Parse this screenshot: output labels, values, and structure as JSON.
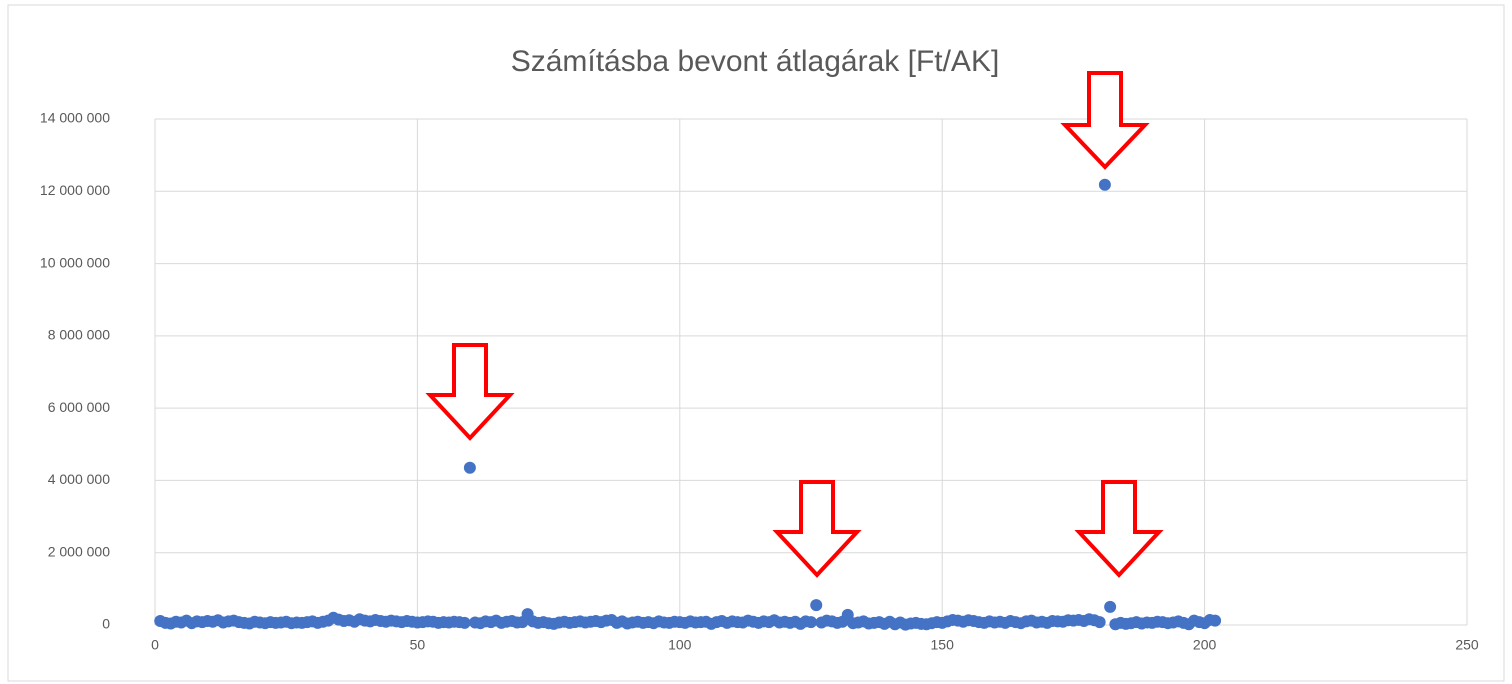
{
  "chart_data": {
    "type": "scatter",
    "title": "Számításba bevont átlagárak [Ft/AK]",
    "color": "#4472c4",
    "grid": true,
    "xlim": [
      0,
      250
    ],
    "xticks": [
      0,
      50,
      100,
      150,
      200,
      250
    ],
    "ylim": [
      0,
      14000000
    ],
    "yticks": [
      0,
      {
        "value": 2000000,
        "label": "2 000 000"
      },
      {
        "value": 4000000,
        "label": "4 000 000"
      },
      {
        "value": 6000000,
        "label": "6 000 000"
      },
      {
        "value": 8000000,
        "label": "8 000 000"
      },
      {
        "value": 10000000,
        "label": "10 000 000"
      },
      {
        "value": 12000000,
        "label": "12 000 000"
      },
      {
        "value": 14000000,
        "label": "14 000 000"
      }
    ],
    "x": [
      1,
      2,
      3,
      4,
      5,
      6,
      7,
      8,
      9,
      10,
      11,
      12,
      13,
      14,
      15,
      16,
      17,
      18,
      19,
      20,
      21,
      22,
      23,
      24,
      25,
      26,
      27,
      28,
      29,
      30,
      31,
      32,
      33,
      34,
      35,
      36,
      37,
      38,
      39,
      40,
      41,
      42,
      43,
      44,
      45,
      46,
      47,
      48,
      49,
      50,
      51,
      52,
      53,
      54,
      55,
      56,
      57,
      58,
      59,
      60,
      61,
      62,
      63,
      64,
      65,
      66,
      67,
      68,
      69,
      70,
      71,
      72,
      73,
      74,
      75,
      76,
      77,
      78,
      79,
      80,
      81,
      82,
      83,
      84,
      85,
      86,
      87,
      88,
      89,
      90,
      91,
      92,
      93,
      94,
      95,
      96,
      97,
      98,
      99,
      100,
      101,
      102,
      103,
      104,
      105,
      106,
      107,
      108,
      109,
      110,
      111,
      112,
      113,
      114,
      115,
      116,
      117,
      118,
      119,
      120,
      121,
      122,
      123,
      124,
      125,
      126,
      127,
      128,
      129,
      130,
      131,
      132,
      133,
      134,
      135,
      136,
      137,
      138,
      139,
      140,
      141,
      142,
      143,
      144,
      145,
      146,
      147,
      148,
      149,
      150,
      151,
      152,
      153,
      154,
      155,
      156,
      157,
      158,
      159,
      160,
      161,
      162,
      163,
      164,
      165,
      166,
      167,
      168,
      169,
      170,
      171,
      172,
      173,
      174,
      175,
      176,
      177,
      178,
      179,
      180,
      181,
      182,
      183,
      184,
      185,
      186,
      187,
      188,
      189,
      190,
      191,
      192,
      193,
      194,
      195,
      196,
      197,
      198,
      199,
      200,
      201,
      202
    ],
    "values": [
      110000,
      60000,
      40000,
      90000,
      70000,
      120000,
      50000,
      100000,
      80000,
      110000,
      90000,
      130000,
      70000,
      100000,
      120000,
      80000,
      60000,
      40000,
      90000,
      70000,
      50000,
      80000,
      60000,
      70000,
      90000,
      50000,
      70000,
      60000,
      80000,
      100000,
      60000,
      90000,
      120000,
      200000,
      150000,
      110000,
      130000,
      90000,
      160000,
      120000,
      100000,
      140000,
      110000,
      90000,
      120000,
      100000,
      80000,
      110000,
      90000,
      70000,
      80000,
      100000,
      90000,
      60000,
      80000,
      70000,
      90000,
      80000,
      60000,
      4350000,
      70000,
      50000,
      100000,
      80000,
      120000,
      60000,
      90000,
      110000,
      70000,
      80000,
      300000,
      100000,
      60000,
      80000,
      50000,
      30000,
      70000,
      90000,
      60000,
      80000,
      100000,
      70000,
      90000,
      110000,
      80000,
      120000,
      140000,
      60000,
      100000,
      40000,
      70000,
      90000,
      60000,
      80000,
      50000,
      100000,
      70000,
      60000,
      90000,
      80000,
      60000,
      100000,
      70000,
      80000,
      90000,
      30000,
      80000,
      110000,
      60000,
      100000,
      80000,
      70000,
      120000,
      90000,
      60000,
      100000,
      80000,
      130000,
      70000,
      90000,
      60000,
      90000,
      30000,
      100000,
      80000,
      550000,
      70000,
      120000,
      100000,
      60000,
      90000,
      280000,
      50000,
      70000,
      100000,
      40000,
      60000,
      80000,
      30000,
      90000,
      20000,
      70000,
      10000,
      40000,
      60000,
      30000,
      20000,
      50000,
      80000,
      60000,
      100000,
      140000,
      120000,
      90000,
      130000,
      110000,
      80000,
      60000,
      100000,
      70000,
      90000,
      60000,
      110000,
      80000,
      50000,
      100000,
      120000,
      70000,
      90000,
      60000,
      110000,
      100000,
      90000,
      130000,
      120000,
      140000,
      110000,
      160000,
      130000,
      80000,
      12180000,
      500000,
      20000,
      60000,
      30000,
      50000,
      80000,
      40000,
      70000,
      60000,
      90000,
      80000,
      50000,
      70000,
      100000,
      60000,
      20000,
      120000,
      80000,
      50000,
      140000,
      120000
    ]
  }
}
